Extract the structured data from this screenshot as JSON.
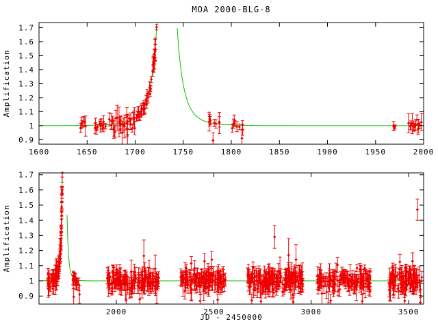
{
  "title": "MOA 2000-BLG-8",
  "colors": {
    "data_points": "#ee0000",
    "model_curve": "#00c000",
    "axis": "#000000",
    "background": "#ffffff"
  },
  "chart_data": [
    {
      "type": "scatter",
      "name": "top-panel-event-season",
      "title": "MOA 2000-BLG-8",
      "xlabel": "",
      "ylabel": "Amplification",
      "xlim": [
        1600,
        2000
      ],
      "ylim": [
        0.868,
        1.736
      ],
      "xticks": [
        1600,
        1650,
        1700,
        1750,
        1800,
        1850,
        1900,
        1950,
        2000
      ],
      "yticks": [
        0.9,
        1,
        1.1,
        1.2,
        1.3,
        1.4,
        1.5,
        1.6,
        1.7
      ],
      "grid": false,
      "legend": "none",
      "marker": "red diamond with vertical error bar",
      "model": {
        "kind": "paczynski-microlensing",
        "t0": 1733,
        "tE": 16,
        "u0": 0.15,
        "baseline": 1,
        "note": "green model curve, flat at amplification 1 with lensing peak exceeding plot top near JD 1733"
      },
      "point_clusters": [
        {
          "x_range": [
            1643,
            1650
          ],
          "n": 6,
          "scatter": 0.022,
          "err": 0.03
        },
        {
          "x_range": [
            1658,
            1671
          ],
          "n": 11,
          "scatter": 0.025,
          "err": 0.032
        },
        {
          "x_range": [
            1672,
            1686
          ],
          "n": 14,
          "scatter": 0.032,
          "err": 0.045
        },
        {
          "x_range": [
            1686,
            1701
          ],
          "n": 16,
          "scatter": 0.028,
          "err": 0.038
        },
        {
          "x_range": [
            1701,
            1715
          ],
          "n": 22,
          "scatter": 0.02,
          "err": 0.03
        },
        {
          "x_range": [
            1715,
            1722.5
          ],
          "n": 20,
          "scatter": 0.025,
          "err": 0.035
        },
        {
          "x_range": [
            1776,
            1790
          ],
          "n": 8,
          "scatter": 0.018,
          "err": 0.03
        },
        {
          "x_range": [
            1797,
            1812
          ],
          "n": 8,
          "scatter": 0.018,
          "err": 0.03
        },
        {
          "x_range": [
            1967.5,
            1970.5
          ],
          "n": 3,
          "scatter": 0.012,
          "err": 0.022
        },
        {
          "x_range": [
            1984,
            1999
          ],
          "n": 13,
          "scatter": 0.018,
          "err": 0.028
        }
      ],
      "outlier_points": [
        [
          1680,
          1.055,
          0.055
        ],
        [
          1692,
          0.935,
          0.075
        ],
        [
          1781,
          0.895,
          0.055
        ],
        [
          1811,
          0.91,
          0.06
        ],
        [
          1993,
          1.042,
          0.035
        ]
      ]
    },
    {
      "type": "scatter",
      "name": "bottom-panel-full-baseline",
      "xlabel": "JD - 2450000",
      "ylabel": "Amplification",
      "xlim": [
        1603,
        3577
      ],
      "ylim": [
        0.847,
        1.712
      ],
      "xticks": [
        2000,
        2500,
        3000,
        3500
      ],
      "yticks": [
        0.9,
        1,
        1.1,
        1.2,
        1.3,
        1.4,
        1.5,
        1.6,
        1.7
      ],
      "grid": false,
      "legend": "none",
      "marker": "red diamond with vertical error bar",
      "model": {
        "kind": "paczynski-microlensing",
        "t0": 1733,
        "tE": 16,
        "u0": 0.15,
        "baseline": 1,
        "note": "same event as top panel; narrow green spike near JD 1733, flat at 1 elsewhere"
      },
      "point_clusters": [
        {
          "x_range": [
            1643,
            1671
          ],
          "n": 14,
          "scatter": 0.025,
          "err": 0.032
        },
        {
          "x_range": [
            1672,
            1701
          ],
          "n": 26,
          "scatter": 0.03,
          "err": 0.04
        },
        {
          "x_range": [
            1701,
            1722.5
          ],
          "n": 38,
          "scatter": 0.024,
          "err": 0.034
        },
        {
          "x_range": [
            1776,
            1812
          ],
          "n": 16,
          "scatter": 0.018,
          "err": 0.03
        },
        {
          "x_range": [
            1950,
            2218
          ],
          "n": 140,
          "scatter": 0.03,
          "err": 0.038
        },
        {
          "x_range": [
            2325,
            2560
          ],
          "n": 120,
          "scatter": 0.03,
          "err": 0.038
        },
        {
          "x_range": [
            2672,
            2958
          ],
          "n": 160,
          "scatter": 0.034,
          "err": 0.042
        },
        {
          "x_range": [
            3026,
            3305
          ],
          "n": 130,
          "scatter": 0.03,
          "err": 0.038
        },
        {
          "x_range": [
            3400,
            3572
          ],
          "n": 95,
          "scatter": 0.034,
          "err": 0.042
        }
      ],
      "outlier_points": [
        [
          1781,
          0.895,
          0.055
        ],
        [
          1811,
          0.91,
          0.06
        ],
        [
          2050,
          0.872,
          0.04
        ],
        [
          2120,
          0.878,
          0.038
        ],
        [
          2141,
          1.165,
          0.105
        ],
        [
          2200,
          1.08,
          0.09
        ],
        [
          2384,
          1.115,
          0.045
        ],
        [
          2430,
          0.868,
          0.04
        ],
        [
          2452,
          1.13,
          0.05
        ],
        [
          2490,
          1.14,
          0.055
        ],
        [
          2520,
          0.875,
          0.038
        ],
        [
          2695,
          0.872,
          0.04
        ],
        [
          2742,
          0.865,
          0.042
        ],
        [
          2812,
          1.29,
          0.075
        ],
        [
          2884,
          1.17,
          0.11
        ],
        [
          2908,
          0.862,
          0.04
        ],
        [
          2922,
          1.14,
          0.1
        ],
        [
          3100,
          0.87,
          0.04
        ],
        [
          3135,
          1.105,
          0.05
        ],
        [
          3262,
          0.866,
          0.042
        ],
        [
          3455,
          1.125,
          0.05
        ],
        [
          3480,
          0.868,
          0.042
        ],
        [
          3520,
          1.13,
          0.055
        ],
        [
          3545,
          1.47,
          0.07
        ],
        [
          3560,
          0.858,
          0.045
        ]
      ]
    }
  ]
}
